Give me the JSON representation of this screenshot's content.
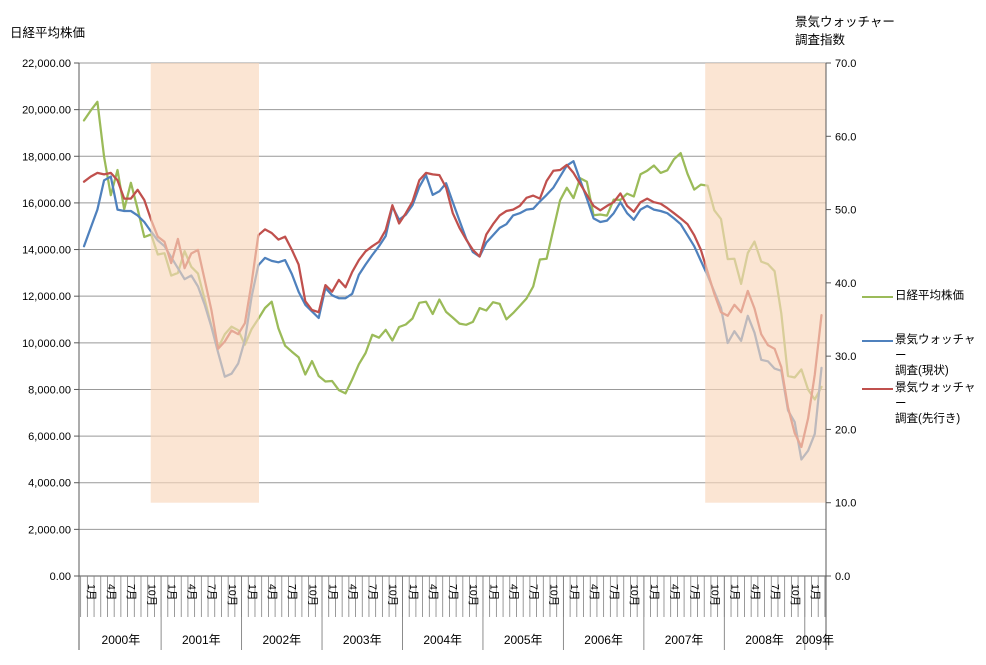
{
  "axis_titles": {
    "left": "日経平均株価",
    "right_line1": "景気ウォッチャー",
    "right_line2": "調査指数"
  },
  "legend": {
    "position": "right",
    "items": [
      {
        "label": "日経平均株価",
        "color": "#9BBB59"
      },
      {
        "label_line1": "景気ウォッチャー",
        "label_line2": "調査(現状)",
        "color": "#4F81BD"
      },
      {
        "label_line1": "景気ウォッチャー",
        "label_line2": "調査(先行き)",
        "color": "#C0504D"
      }
    ]
  },
  "chart_data": {
    "type": "line",
    "x_start": "2000-01",
    "x_end": "2009-03",
    "grid": "horizontal-only",
    "month_label_cycle": [
      "1月",
      "4月",
      "7月",
      "10月"
    ],
    "year_labels": [
      "2000年",
      "2001年",
      "2002年",
      "2003年",
      "2004年",
      "2005年",
      "2006年",
      "2007年",
      "2008年",
      "2009年"
    ],
    "left_axis": {
      "title": "日経平均株価",
      "min": 0,
      "max": 22000,
      "step": 2000,
      "format": "thousands-2dp"
    },
    "right_axis": {
      "title": "景気ウォッチャー調査指数",
      "min": 0,
      "max": 70,
      "step": 10,
      "format": "1dp"
    },
    "colors": {
      "gridline": "#999999",
      "axis": "#595959",
      "tick": "#808080",
      "band": "rgba(249,215,187,0.65)"
    },
    "shaded_bands": [
      {
        "from": "2000-12",
        "to": "2002-03",
        "from_index": 10.3,
        "to_index": 25.6,
        "bottom_right_axis_value": 10
      },
      {
        "from": "2007-11",
        "to": "2009-03",
        "from_index": 93.0,
        "to_index": 110.8,
        "bottom_right_axis_value": 10
      }
    ],
    "series": [
      {
        "name": "日経平均株価",
        "axis": "left",
        "color": "#9BBB59",
        "values": [
          19539,
          19959,
          20337,
          17973,
          16332,
          17411,
          15727,
          16861,
          15747,
          14540,
          14649,
          13786,
          13844,
          12884,
          12999,
          13934,
          13262,
          12969,
          11861,
          10714,
          9775,
          10366,
          10697,
          10543,
          9919,
          10588,
          11025,
          11492,
          11764,
          10622,
          9878,
          9619,
          9383,
          8640,
          9216,
          8579,
          8339,
          8363,
          7973,
          7831,
          8425,
          9083,
          9563,
          10343,
          10219,
          10559,
          10100,
          10677,
          10784,
          11042,
          11715,
          11762,
          11236,
          11859,
          11326,
          11082,
          10824,
          10772,
          10899,
          11489,
          11388,
          11741,
          11669,
          11009,
          11276,
          11584,
          11900,
          12414,
          13574,
          13606,
          14872,
          16111,
          16649,
          16205,
          17060,
          16906,
          15467,
          15505,
          15457,
          16141,
          16128,
          16399,
          16274,
          17226,
          17383,
          17604,
          17288,
          17400,
          17876,
          18138,
          17249,
          16569,
          16786,
          16738,
          15681,
          15308,
          13592,
          13603,
          12526,
          13850,
          14339,
          13481,
          13377,
          13073,
          11260,
          8577,
          8512,
          8860,
          7994,
          7568,
          8110
        ]
      },
      {
        "name": "景気ウォッチャー調査(現状)",
        "axis": "right",
        "color": "#4F81BD",
        "values": [
          45.0,
          47.5,
          50.0,
          54.0,
          54.5,
          50.0,
          49.8,
          49.8,
          49.2,
          48.3,
          47.0,
          45.8,
          45.0,
          43.5,
          42.0,
          40.5,
          41.0,
          39.5,
          37.0,
          34.0,
          30.5,
          27.2,
          27.6,
          29.0,
          32.2,
          38.1,
          42.4,
          43.4,
          43.0,
          42.8,
          43.1,
          41.2,
          38.8,
          37.0,
          36.1,
          35.2,
          39.3,
          38.3,
          37.9,
          37.9,
          38.5,
          41.1,
          42.5,
          43.8,
          45.0,
          46.4,
          50.4,
          48.6,
          49.3,
          50.6,
          53.1,
          54.7,
          52.0,
          52.5,
          53.6,
          51.0,
          48.5,
          46.0,
          44.2,
          43.6,
          45.5,
          46.5,
          47.5,
          48.0,
          49.2,
          49.5,
          50.0,
          50.1,
          51.1,
          52.0,
          53.0,
          54.5,
          56.0,
          56.6,
          54.0,
          51.5,
          48.8,
          48.3,
          48.5,
          49.5,
          51.0,
          49.5,
          48.6,
          50.0,
          50.5,
          50.0,
          49.8,
          49.5,
          48.8,
          48.0,
          46.5,
          45.0,
          43.0,
          41.0,
          38.8,
          36.6,
          31.8,
          33.4,
          32.1,
          35.5,
          33.2,
          29.5,
          29.3,
          28.3,
          28.0,
          22.6,
          21.0,
          15.9,
          17.1,
          19.4,
          28.4
        ]
      },
      {
        "name": "景気ウォッチャー調査(先行き)",
        "axis": "right",
        "color": "#C0504D",
        "values": [
          53.8,
          54.5,
          55.0,
          54.8,
          55.0,
          54.0,
          51.5,
          51.5,
          52.7,
          51.3,
          48.6,
          46.3,
          45.6,
          42.7,
          46.0,
          42.0,
          44.0,
          44.5,
          40.4,
          36.3,
          31.0,
          32.0,
          33.5,
          33.0,
          34.5,
          40.0,
          46.5,
          47.3,
          46.8,
          45.9,
          46.3,
          44.5,
          42.5,
          37.5,
          36.3,
          36.0,
          39.7,
          38.8,
          40.4,
          39.4,
          41.5,
          43.1,
          44.3,
          45.0,
          45.6,
          47.2,
          50.6,
          48.1,
          49.5,
          51.1,
          54.0,
          55.0,
          54.8,
          54.7,
          53.0,
          49.5,
          47.5,
          45.9,
          44.5,
          43.6,
          46.6,
          48.0,
          49.2,
          49.8,
          50.0,
          50.5,
          51.6,
          51.9,
          51.5,
          53.9,
          55.3,
          55.4,
          56.1,
          55.0,
          53.5,
          52.0,
          50.5,
          49.9,
          50.5,
          51.0,
          52.2,
          50.5,
          49.7,
          51.0,
          51.5,
          51.0,
          50.8,
          50.2,
          49.5,
          48.8,
          48.0,
          46.5,
          44.5,
          41.5,
          38.5,
          36.0,
          35.5,
          37.0,
          36.0,
          38.9,
          36.5,
          33.0,
          31.5,
          31.0,
          28.5,
          23.0,
          19.5,
          17.6,
          21.5,
          27.5,
          35.6
        ]
      }
    ]
  }
}
